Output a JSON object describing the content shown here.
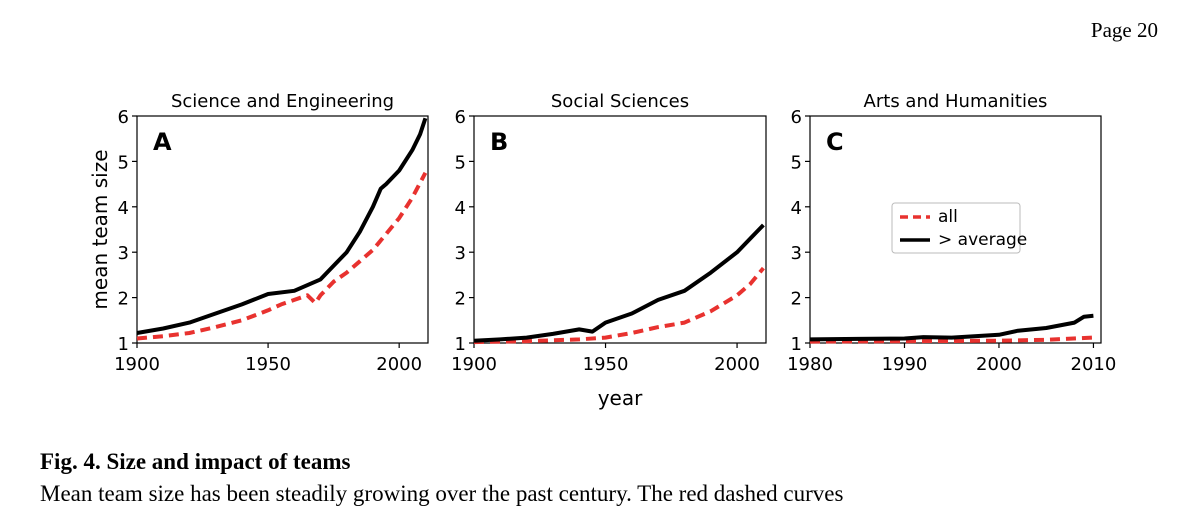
{
  "page": {
    "number_label": "Page 20"
  },
  "figure": {
    "caption_title": "Fig. 4. Size and impact of teams",
    "caption_text": "Mean team size has been steadily growing over the past century. The red dashed curves",
    "shared_xlabel": "year",
    "legend": {
      "all_label": "all",
      "above_label": "> average"
    }
  },
  "chart_data": [
    {
      "type": "line",
      "title": "Science and Engineering",
      "panel_label": "A",
      "xlabel": "",
      "ylabel": "mean team size",
      "xlim": [
        1900,
        2011
      ],
      "ylim": [
        1,
        6
      ],
      "xticks": [
        1900,
        1950,
        2000
      ],
      "yticks": [
        1,
        2,
        3,
        4,
        5,
        6
      ],
      "series": [
        {
          "name": "all",
          "style": "dashed",
          "color": "#e8322f",
          "x": [
            1900,
            1910,
            1920,
            1930,
            1940,
            1950,
            1955,
            1960,
            1965,
            1968,
            1970,
            1975,
            1980,
            1985,
            1990,
            1995,
            2000,
            2005,
            2010
          ],
          "y": [
            1.1,
            1.15,
            1.22,
            1.35,
            1.5,
            1.72,
            1.85,
            1.95,
            2.05,
            1.88,
            2.05,
            2.35,
            2.55,
            2.8,
            3.05,
            3.4,
            3.75,
            4.2,
            4.75
          ]
        },
        {
          "name": "> average",
          "style": "solid",
          "color": "#000000",
          "x": [
            1900,
            1910,
            1920,
            1930,
            1940,
            1950,
            1960,
            1970,
            1975,
            1980,
            1985,
            1990,
            1993,
            1995,
            2000,
            2005,
            2008,
            2010
          ],
          "y": [
            1.22,
            1.32,
            1.45,
            1.65,
            1.85,
            2.08,
            2.15,
            2.4,
            2.7,
            3.0,
            3.45,
            4.0,
            4.4,
            4.5,
            4.8,
            5.25,
            5.6,
            5.95
          ]
        }
      ]
    },
    {
      "type": "line",
      "title": "Social Sciences",
      "panel_label": "B",
      "xlabel": "year",
      "ylabel": "",
      "xlim": [
        1900,
        2011
      ],
      "ylim": [
        1,
        6
      ],
      "xticks": [
        1900,
        1950,
        2000
      ],
      "yticks": [
        1,
        2,
        3,
        4,
        5,
        6
      ],
      "series": [
        {
          "name": "all",
          "style": "dashed",
          "color": "#e8322f",
          "x": [
            1900,
            1910,
            1920,
            1930,
            1940,
            1950,
            1960,
            1970,
            1980,
            1990,
            2000,
            2005,
            2010
          ],
          "y": [
            1.02,
            1.03,
            1.04,
            1.06,
            1.08,
            1.12,
            1.22,
            1.35,
            1.45,
            1.7,
            2.05,
            2.3,
            2.65
          ]
        },
        {
          "name": "> average",
          "style": "solid",
          "color": "#000000",
          "x": [
            1900,
            1910,
            1920,
            1930,
            1940,
            1945,
            1950,
            1960,
            1970,
            1980,
            1990,
            2000,
            2005,
            2010
          ],
          "y": [
            1.05,
            1.08,
            1.12,
            1.2,
            1.3,
            1.25,
            1.45,
            1.65,
            1.95,
            2.15,
            2.55,
            3.0,
            3.3,
            3.6
          ]
        }
      ]
    },
    {
      "type": "line",
      "title": "Arts and Humanities",
      "panel_label": "C",
      "xlabel": "",
      "ylabel": "",
      "xlim": [
        1980,
        2010.8
      ],
      "ylim": [
        1,
        6
      ],
      "xticks": [
        1980,
        1990,
        2000,
        2010
      ],
      "yticks": [
        1,
        2,
        3,
        4,
        5,
        6
      ],
      "legend_position": "center-right",
      "series": [
        {
          "name": "all",
          "style": "dashed",
          "color": "#e8322f",
          "x": [
            1980,
            1990,
            2000,
            2005,
            2010
          ],
          "y": [
            1.03,
            1.04,
            1.05,
            1.07,
            1.12
          ]
        },
        {
          "name": "> average",
          "style": "solid",
          "color": "#000000",
          "x": [
            1980,
            1985,
            1990,
            1992,
            1995,
            2000,
            2002,
            2005,
            2008,
            2009,
            2010
          ],
          "y": [
            1.08,
            1.09,
            1.1,
            1.13,
            1.12,
            1.18,
            1.27,
            1.33,
            1.45,
            1.58,
            1.6
          ]
        }
      ]
    }
  ]
}
